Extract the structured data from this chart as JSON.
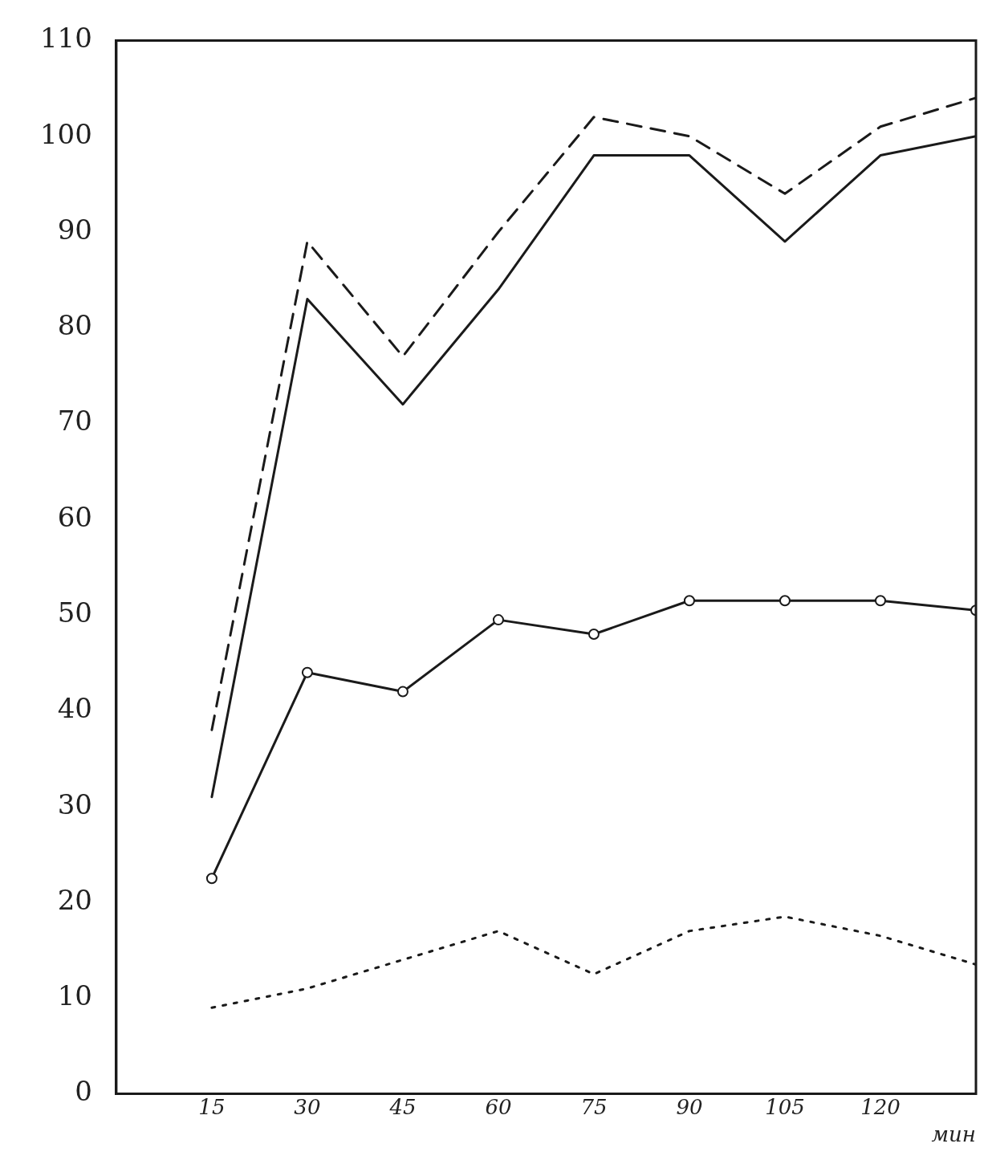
{
  "chart_data": {
    "type": "line",
    "xlabel": "мин",
    "x": [
      15,
      30,
      45,
      60,
      75,
      90,
      105,
      120,
      135
    ],
    "xlim": [
      0,
      135
    ],
    "xticks": [
      15,
      30,
      45,
      60,
      75,
      90,
      105,
      120
    ],
    "ylim": [
      0,
      110
    ],
    "yticks": [
      0,
      10,
      20,
      30,
      40,
      50,
      60,
      70,
      80,
      90,
      100,
      110
    ],
    "grid": false,
    "legend": false,
    "series": [
      {
        "color": "#1a1a1a",
        "line_style": "dashed",
        "marker": "none",
        "values": [
          38,
          89,
          77,
          90,
          102,
          100,
          94,
          101,
          104
        ]
      },
      {
        "color": "#1a1a1a",
        "line_style": "solid",
        "marker": "none",
        "values": [
          31,
          83,
          72,
          84,
          98,
          98,
          89,
          98,
          100
        ]
      },
      {
        "color": "#1a1a1a",
        "line_style": "solid",
        "marker": "circle",
        "values": [
          22.5,
          44,
          42,
          49.5,
          48,
          51.5,
          51.5,
          51.5,
          50.5
        ]
      },
      {
        "color": "#1a1a1a",
        "line_style": "dotted",
        "marker": "none",
        "values": [
          9,
          11,
          14,
          17,
          12.5,
          17,
          18.5,
          16.5,
          13.5
        ]
      }
    ]
  }
}
